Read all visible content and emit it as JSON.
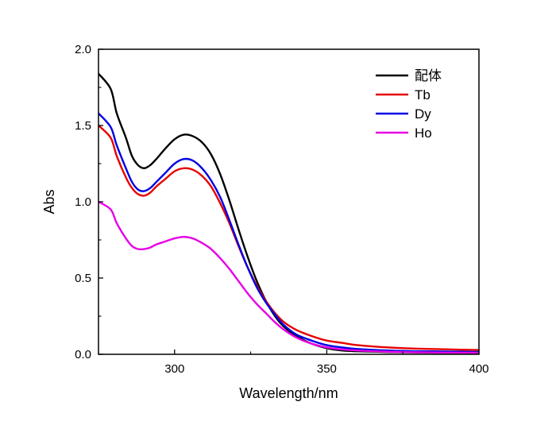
{
  "chart_data": {
    "type": "line",
    "xlabel": "Wavelength/nm",
    "ylabel": "Abs",
    "xlim": [
      275,
      400
    ],
    "ylim": [
      0,
      2.0
    ],
    "x_ticks": [
      300,
      350,
      400
    ],
    "y_ticks": [
      0.0,
      0.5,
      1.0,
      1.5,
      2.0
    ],
    "x_tick_labels": [
      "300",
      "350",
      "400"
    ],
    "y_tick_labels": [
      "0.0",
      "0.5",
      "1.0",
      "1.5",
      "2.0"
    ],
    "grid": false,
    "legend_position": "top-right",
    "series": [
      {
        "name": "配体",
        "color": "#000000",
        "x": [
          275,
          279,
          281,
          284,
          286,
          288,
          290,
          292,
          294,
          297,
          300,
          303,
          306,
          309,
          312,
          315,
          318,
          321,
          324,
          327,
          330,
          333,
          336,
          340,
          345,
          350,
          355,
          360,
          370,
          380,
          390,
          400
        ],
        "y": [
          1.84,
          1.74,
          1.58,
          1.42,
          1.3,
          1.24,
          1.22,
          1.24,
          1.28,
          1.35,
          1.41,
          1.44,
          1.43,
          1.39,
          1.31,
          1.18,
          1.01,
          0.82,
          0.64,
          0.48,
          0.35,
          0.25,
          0.18,
          0.12,
          0.07,
          0.04,
          0.025,
          0.02,
          0.015,
          0.012,
          0.01,
          0.01
        ]
      },
      {
        "name": "Tb",
        "color": "#e60000",
        "x": [
          275,
          279,
          281,
          284,
          286,
          288,
          290,
          292,
          294,
          297,
          300,
          303,
          306,
          309,
          312,
          315,
          318,
          321,
          324,
          327,
          330,
          333,
          336,
          340,
          345,
          350,
          355,
          360,
          370,
          380,
          390,
          400
        ],
        "y": [
          1.5,
          1.42,
          1.3,
          1.16,
          1.09,
          1.05,
          1.04,
          1.06,
          1.1,
          1.15,
          1.2,
          1.22,
          1.21,
          1.17,
          1.1,
          0.99,
          0.86,
          0.71,
          0.57,
          0.45,
          0.35,
          0.27,
          0.21,
          0.16,
          0.12,
          0.09,
          0.075,
          0.06,
          0.045,
          0.037,
          0.032,
          0.028
        ]
      },
      {
        "name": "Dy",
        "color": "#0000e6",
        "x": [
          275,
          279,
          281,
          284,
          286,
          288,
          290,
          292,
          294,
          297,
          300,
          303,
          306,
          309,
          312,
          315,
          318,
          321,
          324,
          327,
          330,
          333,
          336,
          340,
          345,
          350,
          355,
          360,
          370,
          380,
          390,
          400
        ],
        "y": [
          1.58,
          1.49,
          1.37,
          1.22,
          1.13,
          1.08,
          1.07,
          1.09,
          1.13,
          1.19,
          1.25,
          1.28,
          1.27,
          1.22,
          1.14,
          1.03,
          0.88,
          0.72,
          0.57,
          0.44,
          0.34,
          0.26,
          0.19,
          0.13,
          0.09,
          0.06,
          0.045,
          0.035,
          0.025,
          0.02,
          0.018,
          0.015
        ]
      },
      {
        "name": "Ho",
        "color": "#e600e6",
        "x": [
          275,
          279,
          281,
          284,
          286,
          288,
          290,
          292,
          294,
          297,
          300,
          303,
          306,
          309,
          312,
          315,
          318,
          321,
          324,
          327,
          330,
          333,
          336,
          340,
          345,
          350,
          355,
          360,
          370,
          380,
          390,
          400
        ],
        "y": [
          1.0,
          0.95,
          0.86,
          0.76,
          0.71,
          0.69,
          0.69,
          0.7,
          0.72,
          0.74,
          0.76,
          0.77,
          0.76,
          0.73,
          0.69,
          0.63,
          0.56,
          0.48,
          0.4,
          0.33,
          0.27,
          0.21,
          0.16,
          0.11,
          0.07,
          0.045,
          0.032,
          0.025,
          0.017,
          0.013,
          0.011,
          0.01
        ]
      }
    ]
  }
}
